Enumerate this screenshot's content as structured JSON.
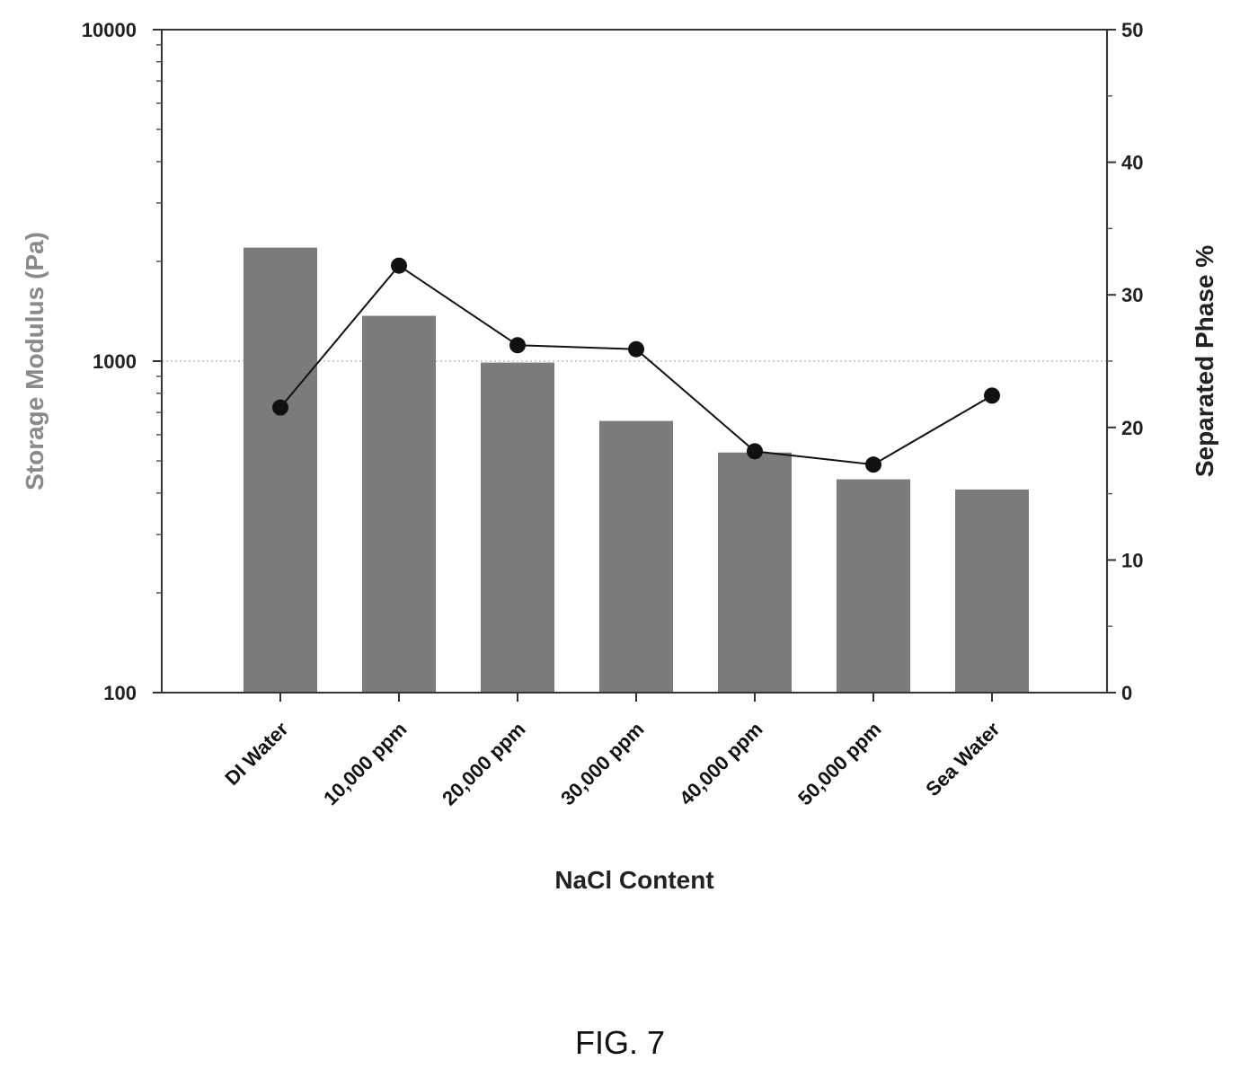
{
  "chart_data": {
    "type": "bar",
    "title": "",
    "xlabel": "NaCl Content",
    "ylabel": "Storage Modulus (Pa)",
    "y2label": "Separated Phase %",
    "categories": [
      "DI Water",
      "10,000 ppm",
      "20,000 ppm",
      "30,000 ppm",
      "40,000 ppm",
      "50,000 ppm",
      "Sea Water"
    ],
    "series": [
      {
        "chart": "bar",
        "axis": "left",
        "values": [
          2200,
          1370,
          990,
          660,
          530,
          440,
          410
        ]
      },
      {
        "chart": "line",
        "axis": "right",
        "marker": "circle",
        "values": [
          21.5,
          32.2,
          26.2,
          25.9,
          18.2,
          17.2,
          22.4
        ]
      }
    ],
    "ylim": [
      100,
      10000
    ],
    "yscale": "log",
    "y2lim": [
      0,
      50
    ],
    "yticks": [
      "100",
      "1000",
      "10000"
    ],
    "y2ticks": [
      "0",
      "10",
      "20",
      "30",
      "40",
      "50"
    ],
    "grid": "horizontal dotted at 1000",
    "colors": {
      "bar": "#7b7b7b",
      "line": "#111111",
      "left_title": "#8a8a8a",
      "right_title": "#222222"
    }
  },
  "caption": "FIG. 7"
}
